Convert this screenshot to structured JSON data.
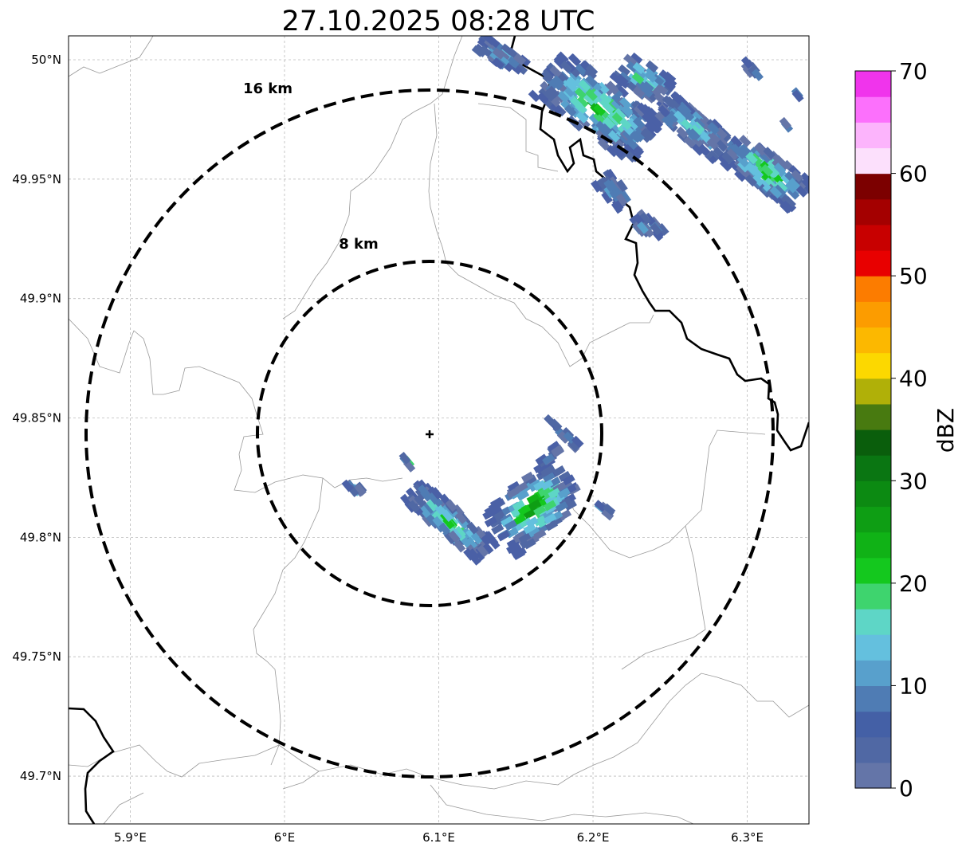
{
  "title": "27.10.2025 08:28 UTC",
  "map": {
    "lon_range": [
      5.86,
      6.34
    ],
    "lat_range": [
      49.68,
      50.01
    ],
    "lon_ticks": [
      {
        "value": 5.9,
        "label": "5.9°E"
      },
      {
        "value": 6.0,
        "label": "6°E"
      },
      {
        "value": 6.1,
        "label": "6.1°E"
      },
      {
        "value": 6.2,
        "label": "6.2°E"
      },
      {
        "value": 6.3,
        "label": "6.3°E"
      }
    ],
    "lat_ticks": [
      {
        "value": 50.0,
        "label": "50°N"
      },
      {
        "value": 49.95,
        "label": "49.95°N"
      },
      {
        "value": 49.9,
        "label": "49.9°N"
      },
      {
        "value": 49.85,
        "label": "49.85°N"
      },
      {
        "value": 49.8,
        "label": "49.8°N"
      },
      {
        "value": 49.75,
        "label": "49.75°N"
      },
      {
        "value": 49.7,
        "label": "49.7°N"
      }
    ],
    "grid": true,
    "radar_center": {
      "lon": 6.095,
      "lat": 49.843
    },
    "range_rings": [
      {
        "label": "8 km",
        "radius_km": 8
      },
      {
        "label": "16 km",
        "radius_km": 16
      }
    ]
  },
  "colorbar": {
    "label": "dBZ",
    "vmin": 0,
    "vmax": 70,
    "ticks": [
      "0",
      "10",
      "20",
      "30",
      "40",
      "50",
      "60",
      "70"
    ],
    "colors": [
      "#6475a8",
      "#5068a4",
      "#4460a6",
      "#4f7cb4",
      "#58a0cc",
      "#64c0de",
      "#5ed6c6",
      "#3ed46e",
      "#14c81e",
      "#10b216",
      "#0e9e14",
      "#0c8a12",
      "#0a7612",
      "#0a5e0c",
      "#487a10",
      "#b0b008",
      "#fcd800",
      "#fcb800",
      "#fc9c00",
      "#fc7c00",
      "#e80000",
      "#c80000",
      "#a40000",
      "#7c0000",
      "#fce0fc",
      "#fcb4fc",
      "#fc70fc",
      "#f034ec"
    ]
  }
}
